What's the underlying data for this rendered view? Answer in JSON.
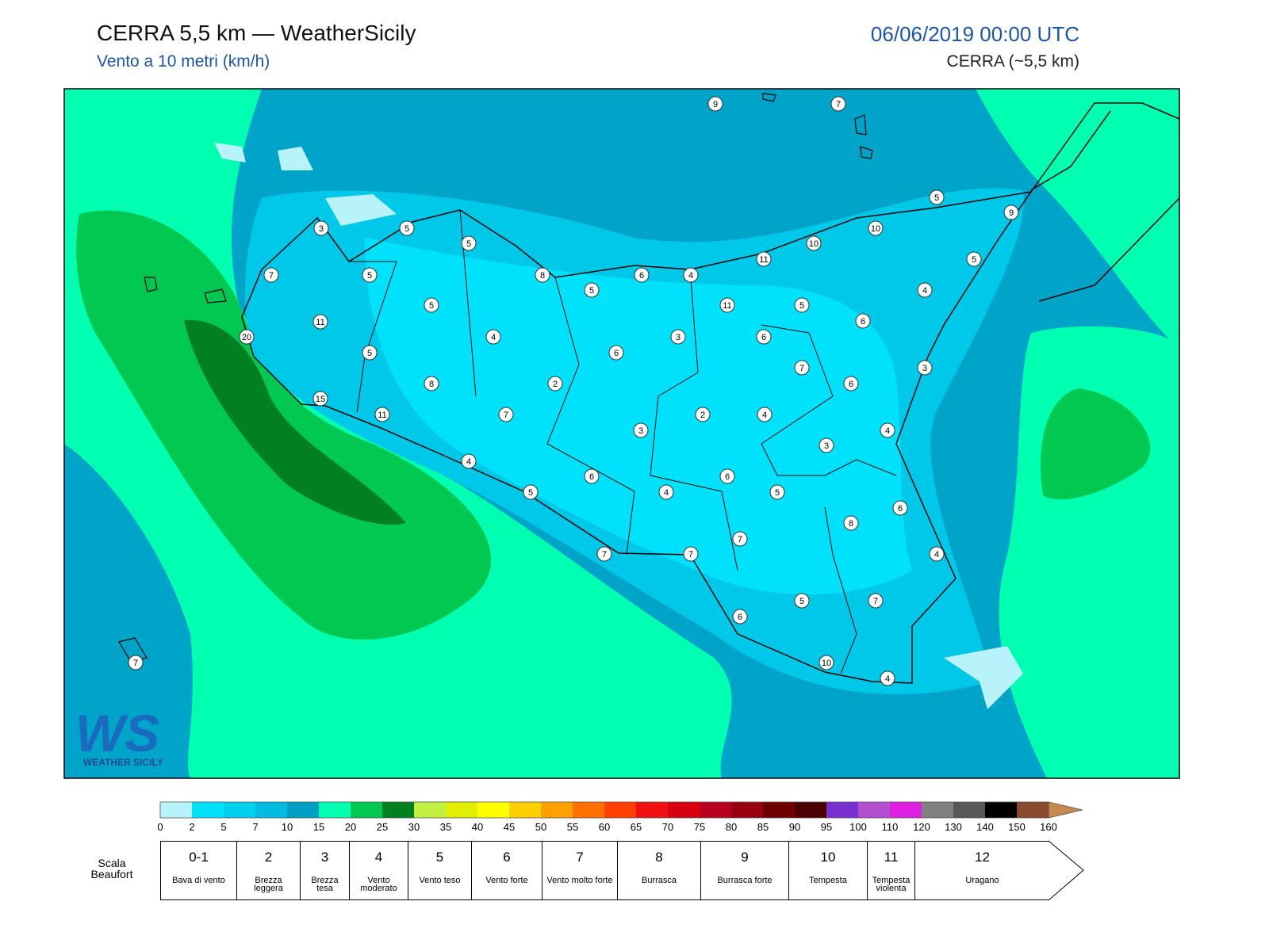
{
  "header": {
    "title": "CERRA 5,5 km — WeatherSicily",
    "subtitle": "Vento a 10 metri (km/h)",
    "date": "06/06/2019 00:00 UTC",
    "model": "CERRA (~5,5 km)"
  },
  "stations": [
    9,
    7,
    5,
    9,
    3,
    5,
    5,
    10,
    10,
    11,
    5,
    7,
    5,
    8,
    6,
    4,
    5,
    4,
    5,
    11,
    5,
    11,
    6,
    20,
    4,
    3,
    6,
    5,
    6,
    3,
    7,
    8,
    2,
    6,
    15,
    11,
    7,
    2,
    4,
    3,
    4,
    3,
    4,
    6,
    6,
    5,
    4,
    5,
    6,
    8,
    7,
    7,
    7,
    4,
    5,
    7,
    6,
    10,
    4,
    7
  ],
  "colorbar": {
    "ticks": [
      0,
      2,
      5,
      7,
      10,
      15,
      20,
      25,
      30,
      35,
      40,
      45,
      50,
      55,
      60,
      65,
      70,
      75,
      80,
      85,
      90,
      95,
      100,
      110,
      120,
      130,
      140,
      150,
      160
    ],
    "colors": [
      "#b8f2fb",
      "#00e2fb",
      "#00d0f0",
      "#00bce0",
      "#00a0c4",
      "#00ffb0",
      "#00c850",
      "#008020",
      "#c0f040",
      "#e0f000",
      "#ffff00",
      "#ffd000",
      "#ffa000",
      "#ff7000",
      "#ff4000",
      "#f01010",
      "#d80010",
      "#b80020",
      "#980010",
      "#700000",
      "#4a0000",
      "#7a30d0",
      "#b050d0",
      "#e020e0",
      "#808080",
      "#585858",
      "#000000",
      "#8a4a30"
    ],
    "extend_color": "#c88a4a"
  },
  "beaufort": {
    "title": "Scala Beaufort",
    "levels": [
      {
        "force": "0-1",
        "label": "Bava di vento"
      },
      {
        "force": "2",
        "label": "Brezza leggera"
      },
      {
        "force": "3",
        "label": "Brezza tesa"
      },
      {
        "force": "4",
        "label": "Vento moderato"
      },
      {
        "force": "5",
        "label": "Vento teso"
      },
      {
        "force": "6",
        "label": "Vento forte"
      },
      {
        "force": "7",
        "label": "Vento molto forte"
      },
      {
        "force": "8",
        "label": "Burrasca"
      },
      {
        "force": "9",
        "label": "Burrasca forte"
      },
      {
        "force": "10",
        "label": "Tempesta"
      },
      {
        "force": "11",
        "label": "Tempesta violenta"
      },
      {
        "force": "12",
        "label": "Uragano"
      }
    ]
  },
  "logo": {
    "mark": "WS",
    "text": "WEATHER SICILY"
  }
}
